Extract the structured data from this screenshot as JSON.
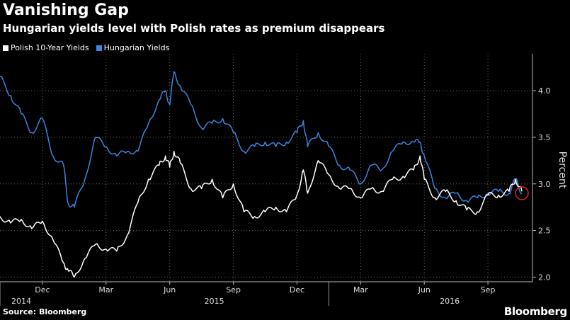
{
  "title": "Vanishing Gap",
  "subtitle": "Hungarian yields level with Polish rates as premium disappears",
  "source": "Source: Bloomberg",
  "brand": "Bloomberg",
  "colors": {
    "polish": "#ffffff",
    "hungarian": "#3a86e0",
    "marker": "#e02020",
    "grid": "#6a6a6a"
  },
  "chart_data": {
    "type": "line",
    "title": "Vanishing Gap",
    "subtitle": "Hungarian yields level with Polish rates as premium disappears",
    "xlabel": "",
    "ylabel": "Percent",
    "ylim": [
      1.95,
      4.35
    ],
    "xlim": [
      0,
      25.1
    ],
    "yticks": [
      2.0,
      2.5,
      3.0,
      3.5,
      4.0
    ],
    "ytick_labels": [
      "2.0",
      "2.5",
      "3.0",
      "3.5",
      "4.0"
    ],
    "month_ticks": [
      {
        "x": 2,
        "label": "Dec"
      },
      {
        "x": 5,
        "label": "Mar"
      },
      {
        "x": 8,
        "label": "Jun"
      },
      {
        "x": 11,
        "label": "Sep"
      },
      {
        "x": 14,
        "label": "Dec"
      },
      {
        "x": 17,
        "label": "Mar"
      },
      {
        "x": 20,
        "label": "Jun"
      },
      {
        "x": 23,
        "label": "Sep"
      }
    ],
    "year_labels": [
      {
        "x": 0.2,
        "label": "2014"
      },
      {
        "x": 9.3,
        "label": "2015"
      },
      {
        "x": 20.4,
        "label": "2016"
      }
    ],
    "year_dividers": [
      0,
      15.5
    ],
    "x_units": "months since start of Oct 2014",
    "series": [
      {
        "name": "Polish 10-Year Yields",
        "x": [
          0,
          0.5,
          1.0,
          1.5,
          2.0,
          2.5,
          3.0,
          3.2,
          3.5,
          4.0,
          4.5,
          5.0,
          5.5,
          6.0,
          6.5,
          7.0,
          7.5,
          7.8,
          8.0,
          8.2,
          8.5,
          9.0,
          9.5,
          10.0,
          10.5,
          11.0,
          11.5,
          12.0,
          12.5,
          13.0,
          13.5,
          14.0,
          14.3,
          14.5,
          15.0,
          15.5,
          16.0,
          16.5,
          17.0,
          17.5,
          18.0,
          18.5,
          19.0,
          19.5,
          19.8,
          20.0,
          20.5,
          21.0,
          21.5,
          22.0,
          22.5,
          23.0,
          23.5,
          24.0,
          24.3,
          24.6
        ],
        "values": [
          2.65,
          2.58,
          2.62,
          2.52,
          2.6,
          2.4,
          2.15,
          2.08,
          2.0,
          2.2,
          2.35,
          2.3,
          2.28,
          2.45,
          2.8,
          3.05,
          3.2,
          3.3,
          3.18,
          3.35,
          3.22,
          2.95,
          2.95,
          3.05,
          2.85,
          3.0,
          2.7,
          2.65,
          2.7,
          2.75,
          2.7,
          2.88,
          3.15,
          2.9,
          3.25,
          3.1,
          2.95,
          2.95,
          2.85,
          2.95,
          2.92,
          3.05,
          3.08,
          3.15,
          3.3,
          3.05,
          2.85,
          2.92,
          2.82,
          2.72,
          2.7,
          2.88,
          2.88,
          2.92,
          3.05,
          2.92
        ]
      },
      {
        "name": "Hungarian Yields",
        "x": [
          0,
          0.5,
          1.0,
          1.5,
          2.0,
          2.5,
          3.0,
          3.2,
          3.5,
          4.0,
          4.5,
          5.0,
          5.5,
          6.0,
          6.5,
          7.0,
          7.5,
          7.8,
          8.0,
          8.2,
          8.5,
          9.0,
          9.5,
          10.0,
          10.5,
          11.0,
          11.5,
          12.0,
          12.5,
          13.0,
          13.5,
          14.0,
          14.3,
          14.5,
          15.0,
          15.5,
          16.0,
          16.5,
          17.0,
          17.5,
          18.0,
          18.5,
          19.0,
          19.5,
          19.8,
          20.0,
          20.5,
          21.0,
          21.5,
          22.0,
          22.5,
          23.0,
          23.5,
          24.0,
          24.3,
          24.6
        ],
        "values": [
          4.15,
          3.95,
          3.75,
          3.55,
          3.7,
          3.3,
          3.2,
          2.8,
          2.75,
          3.05,
          3.5,
          3.4,
          3.3,
          3.35,
          3.35,
          3.65,
          3.9,
          4.0,
          3.85,
          4.2,
          4.05,
          3.85,
          3.6,
          3.65,
          3.7,
          3.55,
          3.35,
          3.4,
          3.45,
          3.4,
          3.45,
          3.55,
          3.68,
          3.4,
          3.55,
          3.4,
          3.2,
          3.15,
          3.0,
          3.2,
          3.15,
          3.35,
          3.45,
          3.45,
          3.45,
          3.3,
          2.95,
          2.85,
          2.9,
          2.82,
          2.85,
          2.9,
          2.92,
          2.9,
          3.05,
          2.9
        ]
      }
    ]
  }
}
